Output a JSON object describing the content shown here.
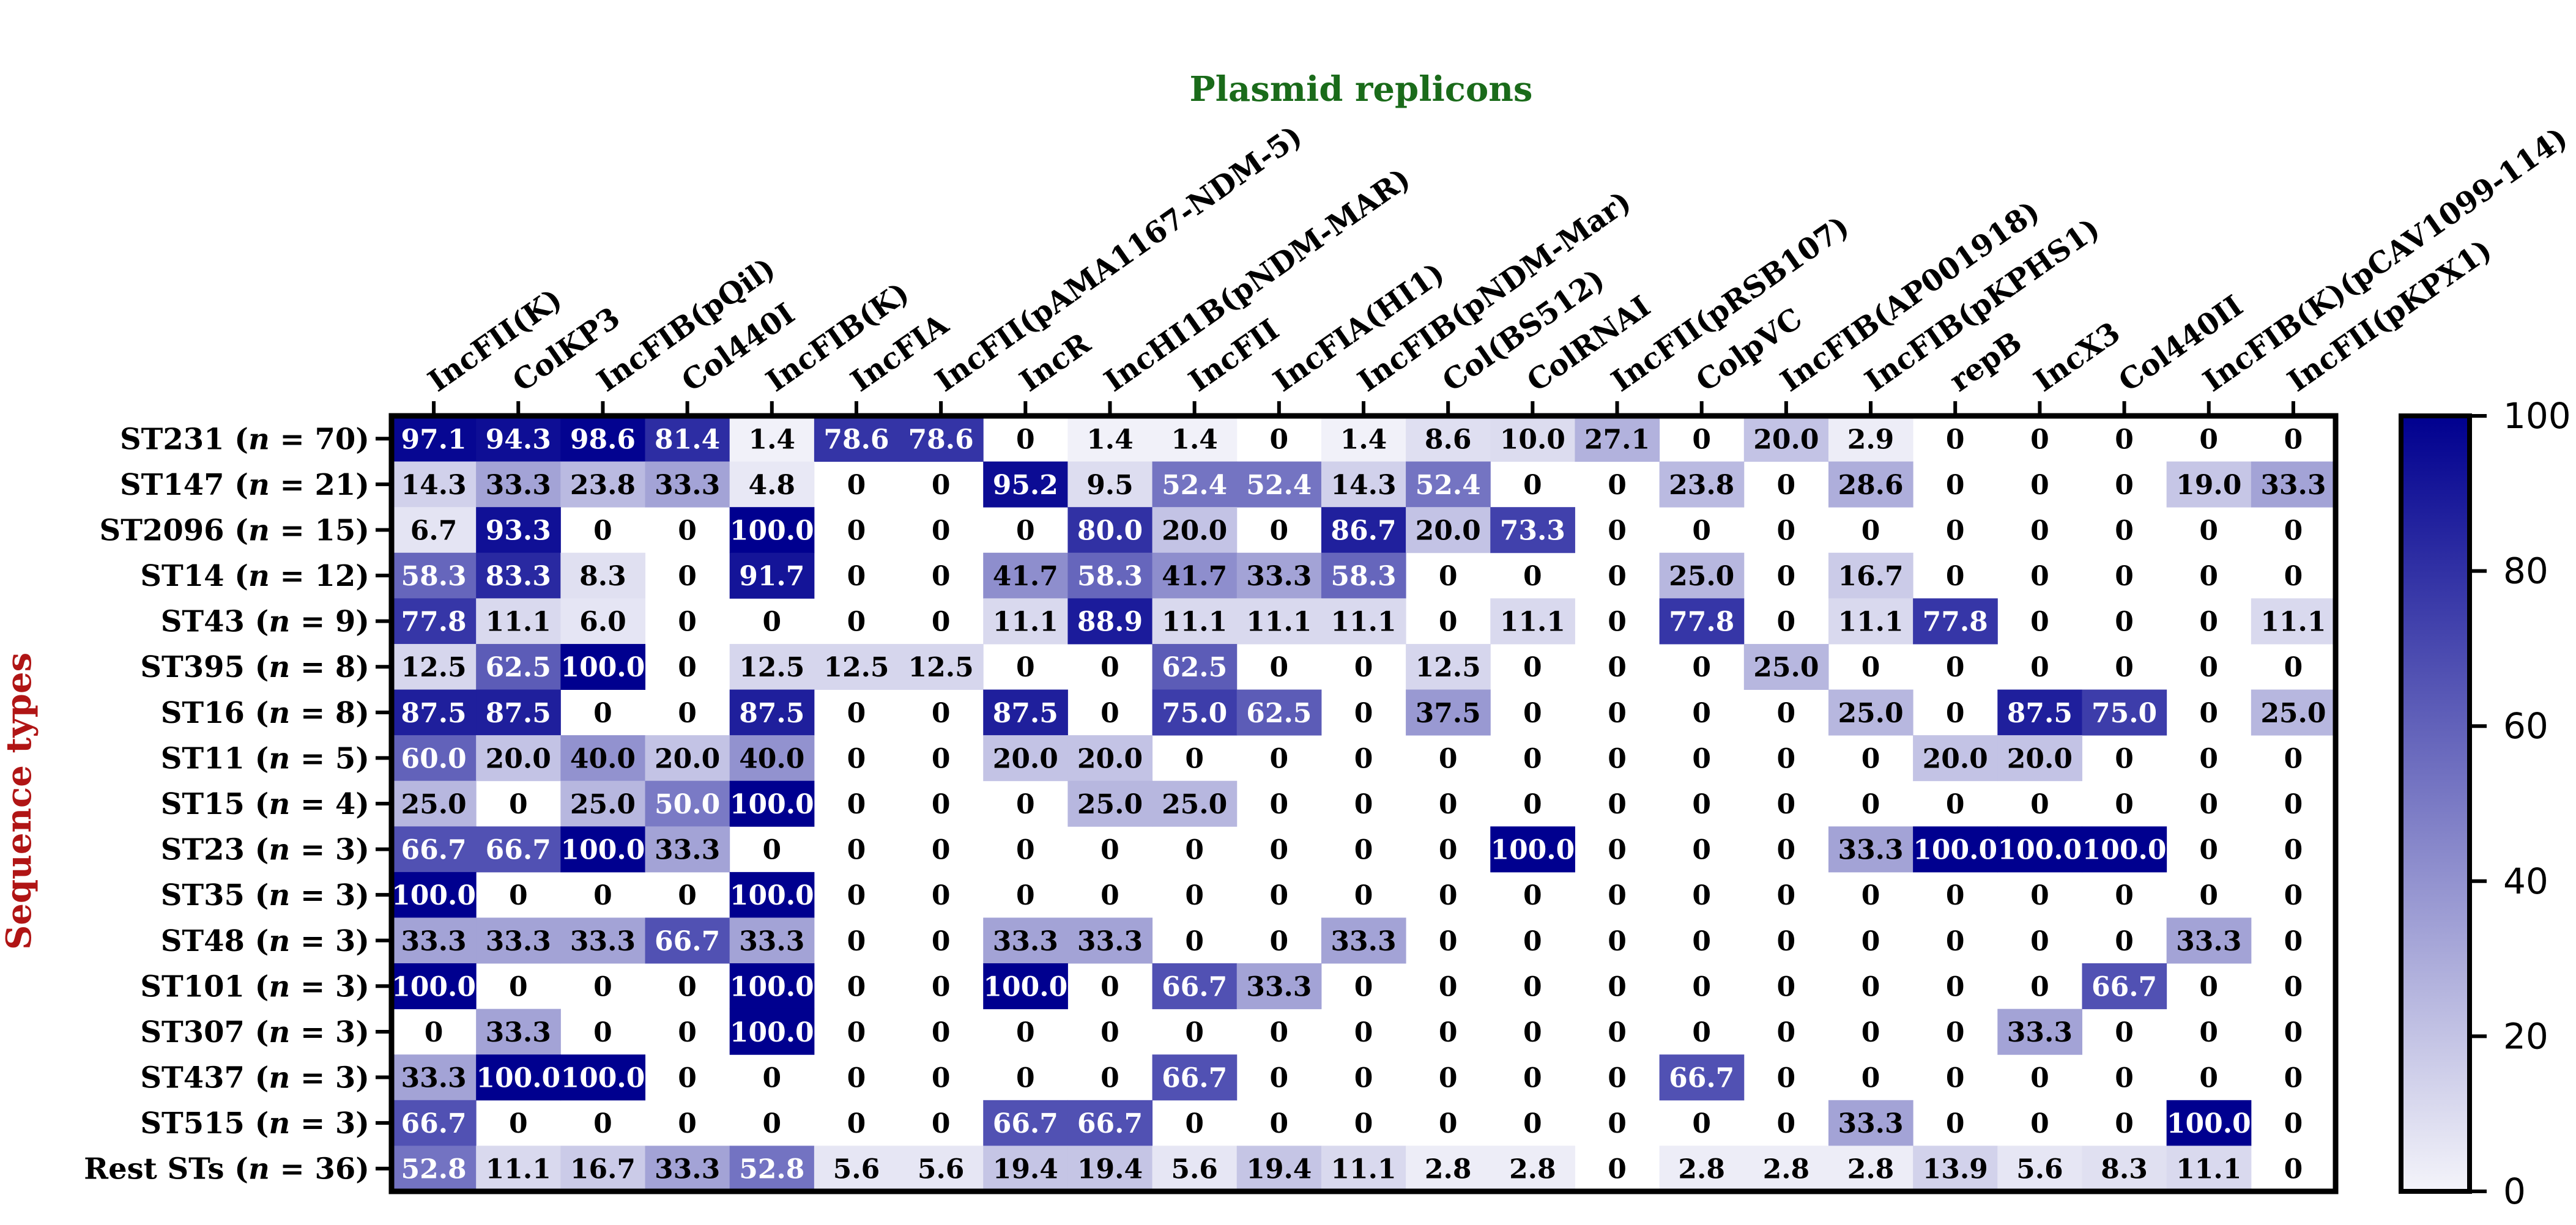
{
  "chart_data": {
    "type": "heatmap",
    "title": "Plasmid replicons",
    "ylabel": "Sequence types",
    "xlabel": "",
    "columns": [
      "IncFII(K)",
      "ColKP3",
      "IncFIB(pQil)",
      "Col440I",
      "IncFIB(K)",
      "IncFIA",
      "IncFII(pAMA1167-NDM-5)",
      "IncR",
      "IncHI1B(pNDM-MAR)",
      "IncFII",
      "IncFIA(HI1)",
      "IncFIB(pNDM-Mar)",
      "Col(BS512)",
      "ColRNAI",
      "IncFII(pRSB107)",
      "ColpVC",
      "IncFIB(AP001918)",
      "IncFIB(pKPHS1)",
      "repB",
      "IncX3",
      "Col440II",
      "IncFIB(K)(pCAV1099-114)",
      "IncFII(pKPX1)"
    ],
    "rows": [
      {
        "st": "ST231",
        "n": "70",
        "values": [
          "97.1",
          "94.3",
          "98.6",
          "81.4",
          "1.4",
          "78.6",
          "78.6",
          "0",
          "1.4",
          "1.4",
          "0",
          "1.4",
          "8.6",
          "10.0",
          "27.1",
          "0",
          "20.0",
          "2.9",
          "0",
          "0",
          "0",
          "0",
          "0"
        ]
      },
      {
        "st": "ST147",
        "n": "21",
        "values": [
          "14.3",
          "33.3",
          "23.8",
          "33.3",
          "4.8",
          "0",
          "0",
          "95.2",
          "9.5",
          "52.4",
          "52.4",
          "14.3",
          "52.4",
          "0",
          "0",
          "23.8",
          "0",
          "28.6",
          "0",
          "0",
          "0",
          "19.0",
          "33.3"
        ]
      },
      {
        "st": "ST2096",
        "n": "15",
        "values": [
          "6.7",
          "93.3",
          "0",
          "0",
          "100.0",
          "0",
          "0",
          "0",
          "80.0",
          "20.0",
          "0",
          "86.7",
          "20.0",
          "73.3",
          "0",
          "0",
          "0",
          "0",
          "0",
          "0",
          "0",
          "0",
          "0"
        ]
      },
      {
        "st": "ST14",
        "n": "12",
        "values": [
          "58.3",
          "83.3",
          "8.3",
          "0",
          "91.7",
          "0",
          "0",
          "41.7",
          "58.3",
          "41.7",
          "33.3",
          "58.3",
          "0",
          "0",
          "0",
          "25.0",
          "0",
          "16.7",
          "0",
          "0",
          "0",
          "0",
          "0"
        ]
      },
      {
        "st": "ST43",
        "n": "9",
        "values": [
          "77.8",
          "11.1",
          "6.0",
          "0",
          "0",
          "0",
          "0",
          "11.1",
          "88.9",
          "11.1",
          "11.1",
          "11.1",
          "0",
          "11.1",
          "0",
          "77.8",
          "0",
          "11.1",
          "77.8",
          "0",
          "0",
          "0",
          "11.1"
        ]
      },
      {
        "st": "ST395",
        "n": "8",
        "values": [
          "12.5",
          "62.5",
          "100.0",
          "0",
          "12.5",
          "12.5",
          "12.5",
          "0",
          "0",
          "62.5",
          "0",
          "0",
          "12.5",
          "0",
          "0",
          "0",
          "25.0",
          "0",
          "0",
          "0",
          "0",
          "0",
          "0"
        ]
      },
      {
        "st": "ST16",
        "n": "8",
        "values": [
          "87.5",
          "87.5",
          "0",
          "0",
          "87.5",
          "0",
          "0",
          "87.5",
          "0",
          "75.0",
          "62.5",
          "0",
          "37.5",
          "0",
          "0",
          "0",
          "0",
          "25.0",
          "0",
          "87.5",
          "75.0",
          "0",
          "25.0"
        ]
      },
      {
        "st": "ST11",
        "n": "5",
        "values": [
          "60.0",
          "20.0",
          "40.0",
          "20.0",
          "40.0",
          "0",
          "0",
          "20.0",
          "20.0",
          "0",
          "0",
          "0",
          "0",
          "0",
          "0",
          "0",
          "0",
          "0",
          "20.0",
          "20.0",
          "0",
          "0",
          "0"
        ]
      },
      {
        "st": "ST15",
        "n": "4",
        "values": [
          "25.0",
          "0",
          "25.0",
          "50.0",
          "100.0",
          "0",
          "0",
          "0",
          "25.0",
          "25.0",
          "0",
          "0",
          "0",
          "0",
          "0",
          "0",
          "0",
          "0",
          "0",
          "0",
          "0",
          "0",
          "0"
        ]
      },
      {
        "st": "ST23",
        "n": "3",
        "values": [
          "66.7",
          "66.7",
          "100.0",
          "33.3",
          "0",
          "0",
          "0",
          "0",
          "0",
          "0",
          "0",
          "0",
          "0",
          "100.0",
          "0",
          "0",
          "0",
          "33.3",
          "100.0",
          "100.0",
          "100.0",
          "0",
          "0"
        ]
      },
      {
        "st": "ST35",
        "n": "3",
        "values": [
          "100.0",
          "0",
          "0",
          "0",
          "100.0",
          "0",
          "0",
          "0",
          "0",
          "0",
          "0",
          "0",
          "0",
          "0",
          "0",
          "0",
          "0",
          "0",
          "0",
          "0",
          "0",
          "0",
          "0"
        ]
      },
      {
        "st": "ST48",
        "n": "3",
        "values": [
          "33.3",
          "33.3",
          "33.3",
          "66.7",
          "33.3",
          "0",
          "0",
          "33.3",
          "33.3",
          "0",
          "0",
          "33.3",
          "0",
          "0",
          "0",
          "0",
          "0",
          "0",
          "0",
          "0",
          "0",
          "33.3",
          "0"
        ]
      },
      {
        "st": "ST101",
        "n": "3",
        "values": [
          "100.0",
          "0",
          "0",
          "0",
          "100.0",
          "0",
          "0",
          "100.0",
          "0",
          "66.7",
          "33.3",
          "0",
          "0",
          "0",
          "0",
          "0",
          "0",
          "0",
          "0",
          "0",
          "66.7",
          "0",
          "0"
        ]
      },
      {
        "st": "ST307",
        "n": "3",
        "values": [
          "0",
          "33.3",
          "0",
          "0",
          "100.0",
          "0",
          "0",
          "0",
          "0",
          "0",
          "0",
          "0",
          "0",
          "0",
          "0",
          "0",
          "0",
          "0",
          "0",
          "33.3",
          "0",
          "0",
          "0"
        ]
      },
      {
        "st": "ST437",
        "n": "3",
        "values": [
          "33.3",
          "100.0",
          "100.0",
          "0",
          "0",
          "0",
          "0",
          "0",
          "0",
          "66.7",
          "0",
          "0",
          "0",
          "0",
          "0",
          "66.7",
          "0",
          "0",
          "0",
          "0",
          "0",
          "0",
          "0"
        ]
      },
      {
        "st": "ST515",
        "n": "3",
        "values": [
          "66.7",
          "0",
          "0",
          "0",
          "0",
          "0",
          "0",
          "66.7",
          "66.7",
          "0",
          "0",
          "0",
          "0",
          "0",
          "0",
          "0",
          "0",
          "33.3",
          "0",
          "0",
          "0",
          "100.0",
          "0"
        ]
      },
      {
        "st": "Rest STs",
        "n": "36",
        "values": [
          "52.8",
          "11.1",
          "16.7",
          "33.3",
          "52.8",
          "5.6",
          "5.6",
          "19.4",
          "19.4",
          "5.6",
          "19.4",
          "11.1",
          "2.8",
          "2.8",
          "0",
          "2.8",
          "2.8",
          "2.8",
          "13.9",
          "5.6",
          "8.3",
          "11.1",
          "0"
        ]
      }
    ],
    "n_symbol": "n",
    "colorbar": {
      "min": 0,
      "max": 100,
      "ticks": [
        "0",
        "20",
        "40",
        "60",
        "80",
        "100"
      ]
    }
  },
  "colors": {
    "title": "#1a6b1a",
    "ylabel": "#b01515",
    "low": "#f4f4fa",
    "high": "#00008f",
    "axis": "#000000"
  }
}
